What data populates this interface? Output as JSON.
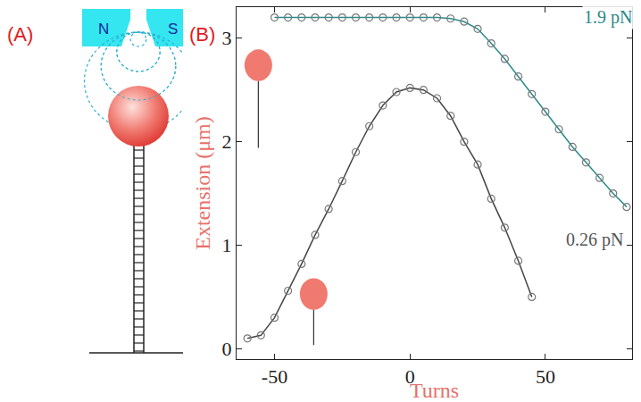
{
  "diagram": {
    "label": "(A)",
    "magnet": {
      "left": "N",
      "right": "S"
    }
  },
  "chart_data": {
    "label": "(B)",
    "type": "line",
    "x_label": "Turns",
    "y_label": "Extension (μm)",
    "xlim": [
      -64,
      82
    ],
    "ylim": [
      -0.1,
      3.3
    ],
    "xticks": [
      -50,
      0,
      50
    ],
    "yticks": [
      0,
      1,
      2,
      3
    ],
    "grid": false,
    "series": [
      {
        "color": "#2a8a8a",
        "marker": "circle-open",
        "line_style": "solid",
        "x": [
          -50,
          -45,
          -40,
          -35,
          -30,
          -25,
          -20,
          -15,
          -10,
          -5,
          0,
          5,
          10,
          15,
          20,
          25,
          30,
          35,
          40,
          45,
          50,
          55,
          60,
          65,
          70,
          75,
          80
        ],
        "values": [
          3.2,
          3.2,
          3.2,
          3.2,
          3.2,
          3.2,
          3.2,
          3.2,
          3.2,
          3.2,
          3.2,
          3.2,
          3.2,
          3.19,
          3.16,
          3.09,
          2.95,
          2.8,
          2.63,
          2.46,
          2.29,
          2.12,
          1.95,
          1.8,
          1.65,
          1.5,
          1.37
        ]
      },
      {
        "color": "#444444",
        "marker": "circle-open",
        "line_style": "solid",
        "x": [
          -60,
          -55,
          -50,
          -45,
          -40,
          -35,
          -30,
          -25,
          -20,
          -15,
          -10,
          -5,
          0,
          5,
          10,
          15,
          20,
          25,
          30,
          35,
          40,
          45
        ],
        "values": [
          0.1,
          0.13,
          0.3,
          0.56,
          0.82,
          1.1,
          1.35,
          1.62,
          1.9,
          2.15,
          2.35,
          2.48,
          2.52,
          2.5,
          2.42,
          2.25,
          2.0,
          1.78,
          1.45,
          1.17,
          0.85,
          0.5
        ]
      }
    ],
    "annotations": [
      {
        "text": "1.9 pN",
        "x": 73,
        "y": 3.2,
        "color": "#2a8a8a"
      },
      {
        "text": "0.26 pN",
        "x": 68,
        "y": 1.05,
        "color": "#555555"
      }
    ]
  }
}
